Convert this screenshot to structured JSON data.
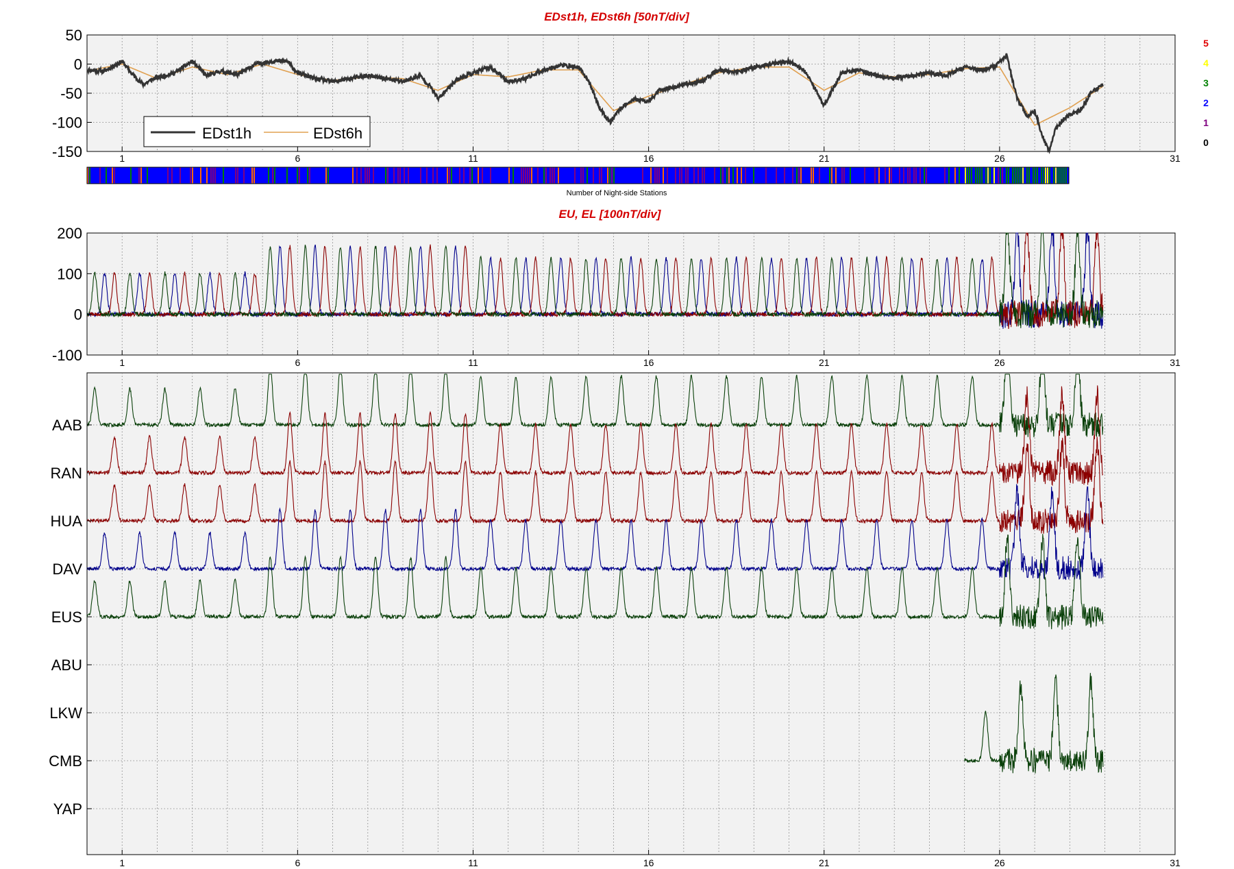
{
  "figure": {
    "panel1_title": "EDst1h, EDst6h [50nT/div]",
    "nightside_label": "Number of Night-side Stations",
    "panel2_title": "EU, EL   [100nT/div]"
  },
  "chart_data": [
    {
      "type": "line",
      "title": "EDst1h, EDst6h [50nT/div]",
      "xlabel": "",
      "ylabel": "",
      "xlim": [
        0,
        31
      ],
      "ylim": [
        -150,
        50
      ],
      "xticks": [
        1,
        6,
        11,
        16,
        21,
        26,
        31
      ],
      "yticks": [
        50,
        0,
        -50,
        -100,
        -150
      ],
      "grid": true,
      "legend": "bottom-left",
      "series": [
        {
          "name": "EDst1h",
          "color": "#333333",
          "x": [
            0,
            0.5,
            1,
            1.3,
            1.6,
            1.9,
            2.5,
            3,
            3.4,
            3.8,
            4.3,
            4.8,
            5.3,
            5.7,
            6,
            6.5,
            7,
            7.5,
            8,
            8.5,
            9,
            9.5,
            9.8,
            10,
            10.5,
            11,
            11.5,
            12,
            12.5,
            13,
            13.5,
            14,
            14.3,
            14.6,
            14.9,
            15.2,
            15.6,
            16,
            16.3,
            16.7,
            17,
            17.5,
            18,
            18.5,
            19,
            19.5,
            20,
            20.5,
            20.8,
            21,
            21.5,
            22,
            22.5,
            23,
            23.5,
            24,
            24.5,
            25,
            25.5,
            25.9,
            26.2,
            26.5,
            26.8,
            27,
            27.2,
            27.4,
            27.6,
            27.9,
            28.3,
            28.6,
            28.95
          ],
          "y": [
            -10,
            -12,
            5,
            -18,
            -35,
            -25,
            -15,
            5,
            -20,
            -12,
            -18,
            0,
            5,
            5,
            -15,
            -25,
            -30,
            -25,
            -20,
            -25,
            -30,
            -20,
            -40,
            -60,
            -28,
            -15,
            -5,
            -30,
            -25,
            -10,
            -2,
            -5,
            -30,
            -75,
            -100,
            -75,
            -60,
            -65,
            -45,
            -40,
            -35,
            -30,
            -10,
            -15,
            -5,
            0,
            5,
            -15,
            -50,
            -70,
            -15,
            -10,
            -20,
            -25,
            -20,
            -15,
            -20,
            -5,
            -10,
            -3,
            15,
            -60,
            -90,
            -80,
            -120,
            -150,
            -110,
            -90,
            -80,
            -50,
            -35
          ]
        },
        {
          "name": "EDst6h",
          "color": "#e0a050",
          "x": [
            0,
            1,
            2,
            3,
            4,
            5,
            6,
            7,
            8,
            9,
            10,
            11,
            12,
            13,
            14,
            15,
            16,
            17,
            18,
            19,
            20,
            21,
            22,
            23,
            24,
            25,
            26,
            27,
            28,
            28.95
          ],
          "y": [
            -12,
            0,
            -25,
            -5,
            -18,
            0,
            -18,
            -28,
            -22,
            -25,
            -45,
            -18,
            -22,
            -10,
            -10,
            -80,
            -55,
            -35,
            -15,
            -5,
            -5,
            -45,
            -15,
            -22,
            -18,
            -8,
            -5,
            -105,
            -75,
            -38
          ]
        }
      ],
      "colorbar": {
        "labels": [
          "5",
          "4",
          "3",
          "2",
          "1",
          "0"
        ],
        "colors": [
          "#e00000",
          "#ffff00",
          "#008000",
          "#0000ff",
          "#800080",
          "#000000"
        ]
      }
    },
    {
      "type": "line",
      "title": "EU, EL   [100nT/div]",
      "xlabel": "",
      "ylabel": "",
      "xlim": [
        0,
        31
      ],
      "ylim": [
        -100,
        200
      ],
      "xticks": [
        1,
        6,
        11,
        16,
        21,
        26,
        31
      ],
      "yticks": [
        200,
        100,
        0,
        -100
      ],
      "grid": true,
      "series": [
        {
          "color": "#00008b",
          "phase": 0.5
        },
        {
          "color": "#8b0000",
          "phase": 0.78
        },
        {
          "color": "#0a400a",
          "phase": 0.22
        }
      ]
    },
    {
      "type": "line",
      "title": "",
      "xlim": [
        0,
        31
      ],
      "xticks": [
        1,
        6,
        11,
        16,
        21,
        26,
        31
      ],
      "grid": true,
      "stations": [
        "AAB",
        "RAN",
        "HUA",
        "DAV",
        "EUS",
        "ABU",
        "LKW",
        "CMB",
        "YAP"
      ],
      "series": [
        {
          "station": "AAB",
          "color": "#0a400a",
          "phase": 0.22,
          "x_range": [
            0,
            28.95
          ]
        },
        {
          "station": "RAN",
          "color": "#8b0000",
          "phase": 0.78,
          "x_range": [
            0,
            28.95
          ]
        },
        {
          "station": "HUA",
          "color": "#8b0000",
          "phase": 0.78,
          "x_range": [
            0,
            28.95
          ]
        },
        {
          "station": "DAV",
          "color": "#00008b",
          "phase": 0.5,
          "x_range": [
            0,
            28.95
          ]
        },
        {
          "station": "EUS",
          "color": "#0a400a",
          "phase": 0.22,
          "x_range": [
            0,
            28.95
          ]
        },
        {
          "station": "CMB",
          "color": "#0a400a",
          "phase": 0.6,
          "x_range": [
            25,
            28.95
          ]
        }
      ]
    }
  ]
}
